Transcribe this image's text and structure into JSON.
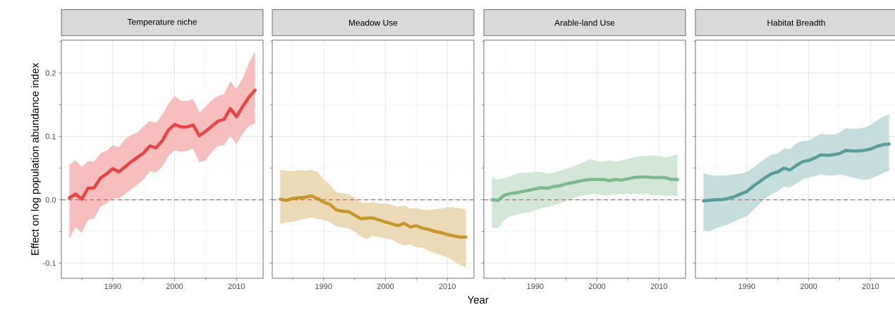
{
  "chart_data": [
    {
      "type": "line",
      "title": "Temperature niche",
      "ylabel": "Effect on log population abundance index",
      "x": [
        1983,
        1984,
        1985,
        1986,
        1987,
        1988,
        1989,
        1990,
        1991,
        1992,
        1993,
        1994,
        1995,
        1996,
        1997,
        1998,
        1999,
        2000,
        2001,
        2002,
        2003,
        2004,
        2005,
        2006,
        2007,
        2008,
        2009,
        2010,
        2011,
        2012,
        2013
      ],
      "series": [
        {
          "color": "#e84545",
          "values": [
            0.003,
            0.009,
            0.001,
            0.018,
            0.019,
            0.034,
            0.041,
            0.049,
            0.044,
            0.052,
            0.06,
            0.067,
            0.074,
            0.085,
            0.082,
            0.093,
            0.11,
            0.119,
            0.115,
            0.115,
            0.118,
            0.101,
            0.108,
            0.116,
            0.124,
            0.127,
            0.144,
            0.131,
            0.147,
            0.162,
            0.173
          ],
          "upper": [
            0.056,
            0.062,
            0.052,
            0.061,
            0.06,
            0.073,
            0.078,
            0.086,
            0.083,
            0.096,
            0.102,
            0.106,
            0.116,
            0.124,
            0.121,
            0.134,
            0.151,
            0.164,
            0.156,
            0.156,
            0.159,
            0.138,
            0.147,
            0.157,
            0.164,
            0.167,
            0.187,
            0.175,
            0.192,
            0.215,
            0.234
          ],
          "lower": [
            -0.062,
            -0.043,
            -0.052,
            -0.032,
            -0.03,
            -0.011,
            -0.006,
            0.002,
            0.002,
            0.009,
            0.017,
            0.024,
            0.032,
            0.045,
            0.043,
            0.052,
            0.069,
            0.078,
            0.076,
            0.077,
            0.081,
            0.059,
            0.062,
            0.075,
            0.085,
            0.086,
            0.101,
            0.088,
            0.104,
            0.116,
            0.121
          ]
        }
      ],
      "ref_lines": [
        {
          "axis": "y",
          "value": 0,
          "color": "#ff4d4d",
          "line_style": "dashed"
        }
      ],
      "xlim": [
        1981.7,
        2014.3
      ],
      "ylim": [
        -0.124,
        0.252
      ],
      "xticks": [
        1990,
        2000,
        2010
      ],
      "yticks": [
        -0.1,
        {
          "value": 0,
          "label": "0.0"
        },
        0.1,
        0.2
      ],
      "grid": true
    },
    {
      "type": "line",
      "title": "Meadow Use",
      "xlabel": "Year",
      "x": [
        1983,
        1984,
        1985,
        1986,
        1987,
        1988,
        1989,
        1990,
        1991,
        1992,
        1993,
        1994,
        1995,
        1996,
        1997,
        1998,
        1999,
        2000,
        2001,
        2002,
        2003,
        2004,
        2005,
        2006,
        2007,
        2008,
        2009,
        2010,
        2011,
        2012,
        2013
      ],
      "series": [
        {
          "color": "#c9962e",
          "values": [
            0.001,
            -0.001,
            0.002,
            0.003,
            0.004,
            0.006,
            0.002,
            -0.004,
            -0.007,
            -0.016,
            -0.018,
            -0.019,
            -0.024,
            -0.03,
            -0.029,
            -0.029,
            -0.032,
            -0.035,
            -0.038,
            -0.041,
            -0.037,
            -0.043,
            -0.041,
            -0.045,
            -0.047,
            -0.05,
            -0.052,
            -0.055,
            -0.057,
            -0.059,
            -0.059
          ],
          "upper": [
            0.047,
            0.046,
            0.045,
            0.047,
            0.046,
            0.047,
            0.044,
            0.032,
            0.024,
            0.012,
            0.01,
            0.009,
            0.003,
            -0.004,
            -0.005,
            -0.004,
            -0.006,
            -0.006,
            -0.008,
            -0.011,
            -0.009,
            -0.014,
            -0.013,
            -0.016,
            -0.016,
            -0.015,
            -0.014,
            -0.012,
            -0.012,
            -0.013,
            -0.015
          ],
          "lower": [
            -0.039,
            -0.035,
            -0.035,
            -0.032,
            -0.03,
            -0.028,
            -0.03,
            -0.032,
            -0.035,
            -0.042,
            -0.044,
            -0.045,
            -0.05,
            -0.058,
            -0.062,
            -0.057,
            -0.059,
            -0.061,
            -0.063,
            -0.069,
            -0.072,
            -0.071,
            -0.075,
            -0.076,
            -0.081,
            -0.084,
            -0.088,
            -0.091,
            -0.097,
            -0.103,
            -0.107
          ]
        }
      ],
      "ref_lines": [
        {
          "axis": "y",
          "value": 0,
          "color": "#ff4d4d",
          "line_style": "dashed"
        }
      ],
      "xlim": [
        1981.7,
        2014.3
      ],
      "ylim": [
        -0.124,
        0.252
      ],
      "xticks": [
        1990,
        2000,
        2010
      ],
      "yticks": [
        -0.1,
        0,
        0.1,
        0.2
      ],
      "grid": true,
      "tick_labels": "x"
    },
    {
      "type": "line",
      "title": "Arable-land Use",
      "x": [
        1983,
        1984,
        1985,
        1986,
        1987,
        1988,
        1989,
        1990,
        1991,
        1992,
        1993,
        1994,
        1995,
        1996,
        1997,
        1998,
        1999,
        2000,
        2001,
        2002,
        2003,
        2004,
        2005,
        2006,
        2007,
        2008,
        2009,
        2010,
        2011,
        2012,
        2013
      ],
      "series": [
        {
          "color": "#7fba8e",
          "values": [
            0.0,
            -0.001,
            0.007,
            0.01,
            0.011,
            0.013,
            0.015,
            0.017,
            0.019,
            0.018,
            0.021,
            0.022,
            0.025,
            0.027,
            0.029,
            0.031,
            0.032,
            0.032,
            0.032,
            0.03,
            0.032,
            0.031,
            0.033,
            0.035,
            0.036,
            0.036,
            0.035,
            0.035,
            0.035,
            0.032,
            0.032
          ],
          "upper": [
            0.035,
            0.032,
            0.034,
            0.037,
            0.041,
            0.043,
            0.043,
            0.044,
            0.044,
            0.041,
            0.043,
            0.046,
            0.049,
            0.052,
            0.056,
            0.06,
            0.064,
            0.061,
            0.06,
            0.062,
            0.06,
            0.062,
            0.065,
            0.067,
            0.069,
            0.069,
            0.07,
            0.069,
            0.067,
            0.069,
            0.072
          ],
          "lower": [
            -0.044,
            -0.045,
            -0.032,
            -0.026,
            -0.024,
            -0.021,
            -0.02,
            -0.017,
            -0.013,
            -0.012,
            -0.009,
            -0.006,
            -0.002,
            0.002,
            0.005,
            0.007,
            0.009,
            0.009,
            0.007,
            0.007,
            0.009,
            0.009,
            0.009,
            0.009,
            0.009,
            0.009,
            0.007,
            0.007,
            0.006,
            0.006,
            0.006
          ]
        }
      ],
      "ref_lines": [
        {
          "axis": "y",
          "value": 0,
          "color": "#ff4d4d",
          "line_style": "dashed"
        }
      ],
      "xlim": [
        1981.7,
        2014.3
      ],
      "ylim": [
        -0.124,
        0.252
      ],
      "xticks": [
        1990,
        2000,
        2010
      ],
      "yticks": [
        -0.1,
        0,
        0.1,
        0.2
      ],
      "grid": true,
      "tick_labels": "x"
    },
    {
      "type": "line",
      "title": "Habitat Breadth",
      "x": [
        1983,
        1984,
        1985,
        1986,
        1987,
        1988,
        1989,
        1990,
        1991,
        1992,
        1993,
        1994,
        1995,
        1996,
        1997,
        1998,
        1999,
        2000,
        2001,
        2002,
        2003,
        2004,
        2005,
        2006,
        2007,
        2008,
        2009,
        2010,
        2011,
        2012,
        2013
      ],
      "series": [
        {
          "color": "#5a9e9c",
          "values": [
            -0.002,
            -0.001,
            0.0,
            0.0,
            0.002,
            0.005,
            0.009,
            0.013,
            0.021,
            0.028,
            0.035,
            0.041,
            0.044,
            0.05,
            0.047,
            0.054,
            0.06,
            0.062,
            0.066,
            0.071,
            0.07,
            0.071,
            0.073,
            0.078,
            0.077,
            0.077,
            0.078,
            0.08,
            0.084,
            0.087,
            0.088
          ],
          "upper": [
            0.042,
            0.039,
            0.038,
            0.038,
            0.039,
            0.04,
            0.041,
            0.044,
            0.05,
            0.058,
            0.065,
            0.071,
            0.073,
            0.081,
            0.08,
            0.089,
            0.093,
            0.093,
            0.099,
            0.104,
            0.103,
            0.103,
            0.106,
            0.113,
            0.112,
            0.112,
            0.114,
            0.118,
            0.125,
            0.131,
            0.135
          ],
          "lower": [
            -0.049,
            -0.05,
            -0.045,
            -0.042,
            -0.039,
            -0.034,
            -0.03,
            -0.026,
            -0.017,
            -0.007,
            0.002,
            0.009,
            0.013,
            0.021,
            0.019,
            0.026,
            0.032,
            0.035,
            0.037,
            0.04,
            0.038,
            0.038,
            0.04,
            0.038,
            0.035,
            0.033,
            0.031,
            0.033,
            0.037,
            0.042,
            0.046
          ]
        }
      ],
      "ref_lines": [
        {
          "axis": "y",
          "value": 0,
          "color": "#ff4d4d",
          "line_style": "dashed"
        }
      ],
      "xlim": [
        1981.7,
        2014.3
      ],
      "ylim": [
        -0.124,
        0.252
      ],
      "xticks": [
        1990,
        2000,
        2010
      ],
      "yticks": [
        -0.1,
        0,
        0.1,
        0.2
      ],
      "grid": true,
      "tick_labels": "x"
    }
  ]
}
